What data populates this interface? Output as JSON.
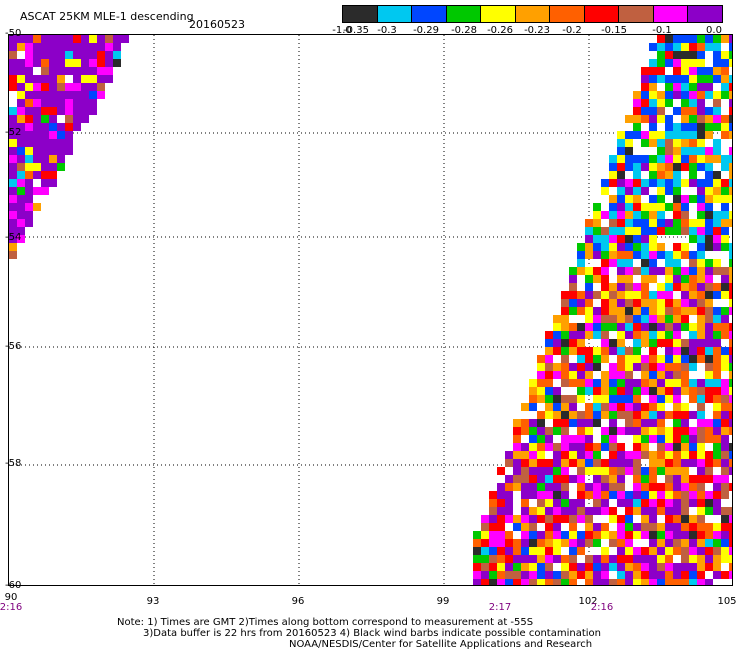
{
  "title": "ASCAT 25KM MLE-1 descending",
  "date": "20160523",
  "colorbar": {
    "labels": [
      "-1.0",
      "-0.35",
      "-0.3",
      "-0.29",
      "-0.28",
      "-0.26",
      "-0.23",
      "-0.2",
      "-0.15",
      "-0.1",
      "0.0"
    ],
    "colors": [
      "#2b2b2b",
      "#00c8f0",
      "#0046ff",
      "#00c800",
      "#ffff00",
      "#ffa000",
      "#ff6000",
      "#ff0000",
      "#c06040",
      "#ff00ff",
      "#8c00c8"
    ]
  },
  "lat_labels": [
    "-50",
    "-52",
    "-54",
    "-56",
    "-58",
    "-60"
  ],
  "lon_labels": [
    "90",
    "93",
    "96",
    "99",
    "102",
    "105"
  ],
  "time_labels": [
    "2:16",
    "2:17",
    "2:16"
  ],
  "notes": [
    "Note: 1) Times are GMT 2)Times along bottom correspond to measurement at -55S",
    "3)Data buffer is 22 hrs from 20160523 4) Black wind barbs indicate possible contamination",
    "NOAA/NESDIS/Center for Satellite Applications and Research"
  ]
}
